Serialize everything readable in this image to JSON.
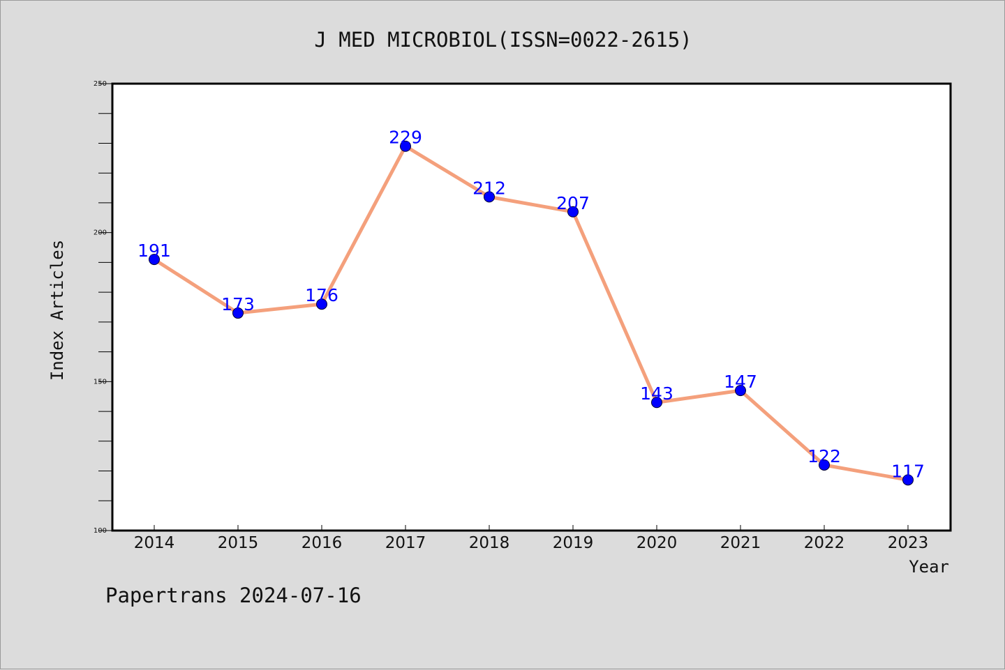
{
  "chart_data": {
    "type": "line",
    "title": "J MED MICROBIOL(ISSN=0022-2615)",
    "xlabel": "Year",
    "ylabel": "Index Articles",
    "categories": [
      "2014",
      "2015",
      "2016",
      "2017",
      "2018",
      "2019",
      "2020",
      "2021",
      "2022",
      "2023"
    ],
    "series": [
      {
        "values": [
          191,
          173,
          176,
          229,
          212,
          207,
          143,
          147,
          122,
          117
        ]
      }
    ],
    "data_labels": [
      "191",
      "173",
      "176",
      "229",
      "212",
      "207",
      "143",
      "147",
      "122",
      "117"
    ],
    "ylim": [
      100,
      250
    ],
    "yticks": [
      "100",
      "150",
      "200",
      "250"
    ],
    "y_minor_step": 10,
    "grid": false,
    "legend": "none",
    "line_color": "#f4a07c",
    "marker_color": "#0000ff",
    "label_color": "#0000ff"
  },
  "footer": "Papertrans 2024-07-16"
}
